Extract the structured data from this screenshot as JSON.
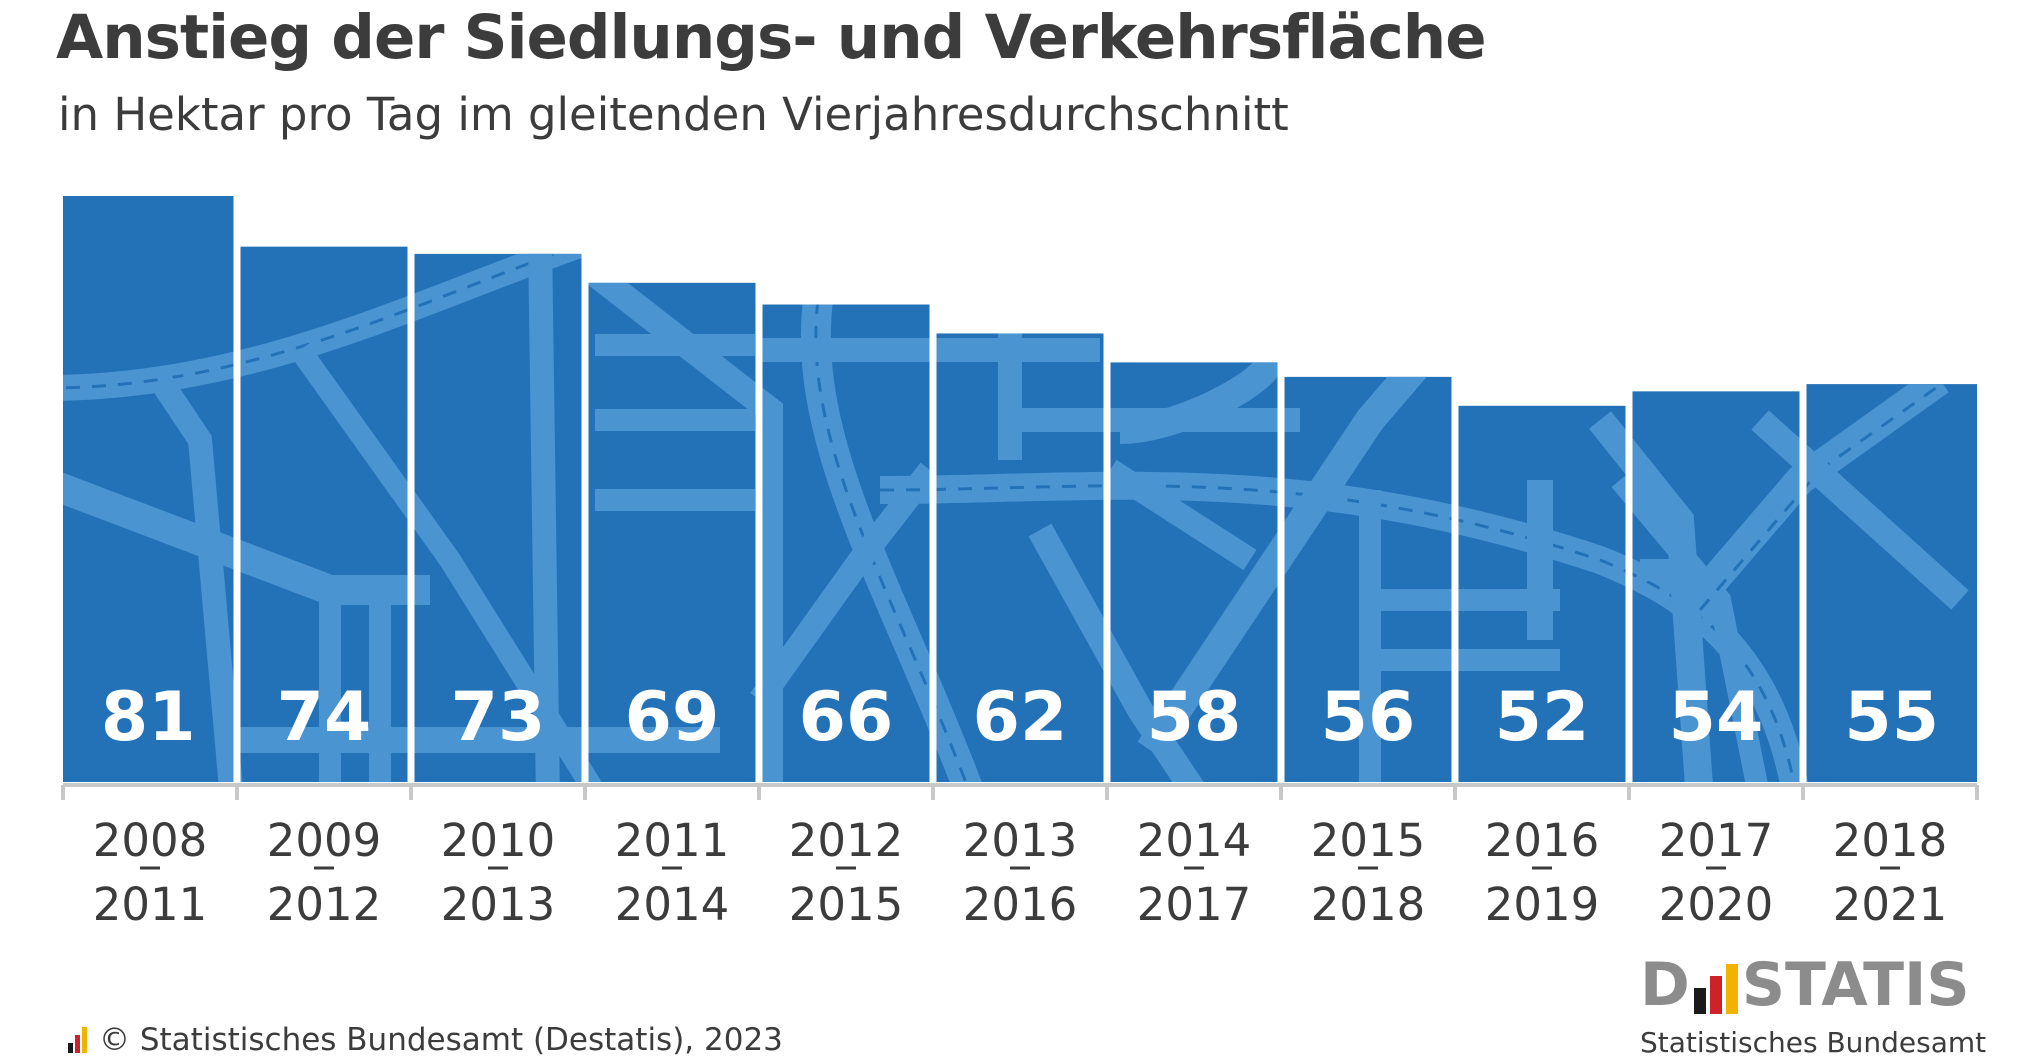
{
  "chart_data": {
    "type": "bar",
    "title": "Anstieg der Siedlungs- und Verkehrsfläche",
    "subtitle": "in Hektar pro Tag im gleitenden Vierjahresdurchschnitt",
    "categories": [
      "2008–2011",
      "2009–2012",
      "2010–2013",
      "2011–2014",
      "2012–2015",
      "2013–2016",
      "2014–2017",
      "2015–2018",
      "2016–2019",
      "2017–2020",
      "2018–2021"
    ],
    "category_lines": [
      [
        "2008",
        "2011"
      ],
      [
        "2009",
        "2012"
      ],
      [
        "2010",
        "2013"
      ],
      [
        "2011",
        "2014"
      ],
      [
        "2012",
        "2015"
      ],
      [
        "2013",
        "2016"
      ],
      [
        "2014",
        "2017"
      ],
      [
        "2015",
        "2018"
      ],
      [
        "2016",
        "2019"
      ],
      [
        "2017",
        "2020"
      ],
      [
        "2018",
        "2021"
      ]
    ],
    "values": [
      81,
      74,
      73,
      69,
      66,
      62,
      58,
      56,
      52,
      54,
      55
    ],
    "data_labels": true,
    "ylim": [
      0,
      81
    ],
    "xlabel": "",
    "ylabel": "",
    "grid": false,
    "bar_color": "#2372b8",
    "pattern_color": "#4a94d2",
    "axis_color": "#c8c8c8",
    "text_color": "#3c3c3c"
  },
  "footer": {
    "copyright": "© Statistisches Bundesamt (Destatis), 2023",
    "logo_word_left": "D",
    "logo_word_right": "STATIS",
    "logo_org": "Statistisches Bundesamt",
    "logo_colors": [
      "#1a1a1a",
      "#cc2229",
      "#f0b400"
    ]
  }
}
